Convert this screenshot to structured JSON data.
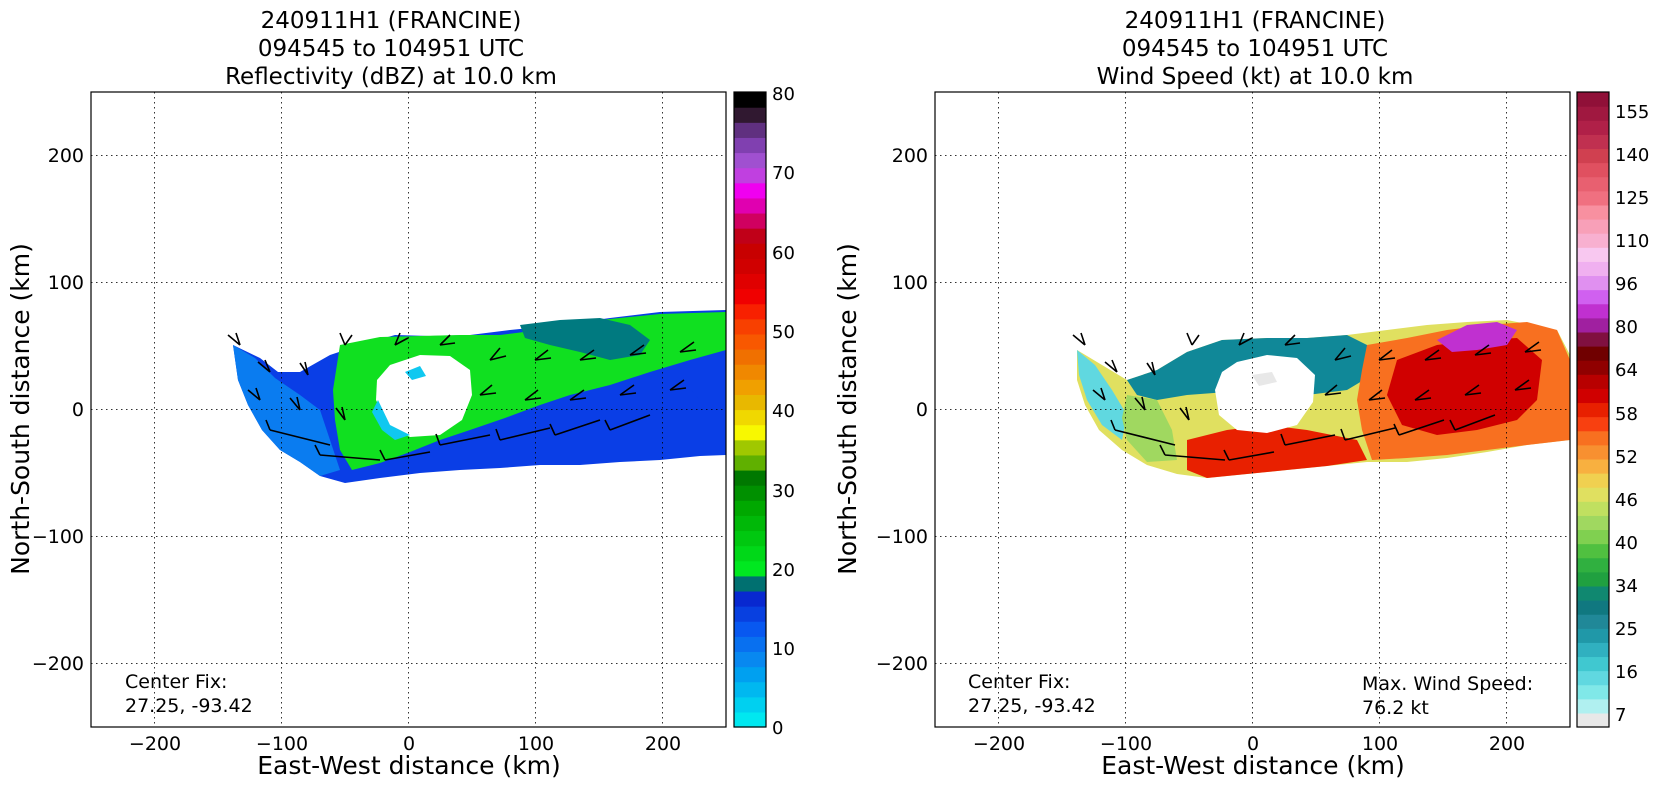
{
  "chart_data": [
    {
      "type": "heatmap",
      "title_lines": [
        "240911H1 (FRANCINE)",
        "094545 to 104951 UTC",
        "Reflectivity (dBZ) at 10.0 km"
      ],
      "xlabel": "East-West distance (km)",
      "ylabel": "North-South distance (km)",
      "xlim": [
        -250,
        250
      ],
      "ylim": [
        -250,
        250
      ],
      "x_ticks": [
        -200,
        -100,
        0,
        100,
        200
      ],
      "y_ticks": [
        -200,
        -100,
        0,
        100,
        200
      ],
      "x_tick_labels": [
        "−200",
        "−100",
        "0",
        "100",
        "200"
      ],
      "y_tick_labels": [
        "−200",
        "−100",
        "0",
        "100",
        "200"
      ],
      "grid": true,
      "colorbar": {
        "min": 0,
        "max": 80,
        "ticks": [
          0,
          10,
          20,
          30,
          40,
          50,
          60,
          70,
          80
        ],
        "tick_labels": [
          "0",
          "10",
          "20",
          "30",
          "40",
          "50",
          "60",
          "70",
          "80"
        ],
        "colors": [
          "#00e8f0",
          "#00d0f0",
          "#00b8f0",
          "#00a0f0",
          "#0888f0",
          "#0870f0",
          "#0858f0",
          "#0840e0",
          "#0828d0",
          "#007070",
          "#00e820",
          "#00d818",
          "#00c810",
          "#00b808",
          "#00a800",
          "#009000",
          "#007800",
          "#60b000",
          "#a0c800",
          "#f8f800",
          "#f0d800",
          "#e8b800",
          "#f0a000",
          "#f08800",
          "#f07000",
          "#f85800",
          "#f84000",
          "#f82000",
          "#f00000",
          "#e00000",
          "#d00000",
          "#c80000",
          "#c00018",
          "#d00060",
          "#e000b0",
          "#f000f0",
          "#c040e0",
          "#a050d0",
          "#8040b0",
          "#603080",
          "#301830",
          "#000000"
        ]
      },
      "annotations": [
        "Center Fix:",
        "27.25, -93.42"
      ]
    },
    {
      "type": "heatmap",
      "title_lines": [
        "240911H1 (FRANCINE)",
        "094545 to 104951 UTC",
        "Wind Speed (kt) at 10.0 km"
      ],
      "xlabel": "East-West distance (km)",
      "ylabel": "North-South distance (km)",
      "xlim": [
        -250,
        250
      ],
      "ylim": [
        -250,
        250
      ],
      "x_ticks": [
        -200,
        -100,
        0,
        100,
        200
      ],
      "y_ticks": [
        -200,
        -100,
        0,
        100,
        200
      ],
      "x_tick_labels": [
        "−200",
        "−100",
        "0",
        "100",
        "200"
      ],
      "y_tick_labels": [
        "−200",
        "−100",
        "0",
        "100",
        "200"
      ],
      "grid": true,
      "colorbar": {
        "tick_labels": [
          "7",
          "16",
          "25",
          "34",
          "40",
          "46",
          "52",
          "58",
          "64",
          "80",
          "96",
          "110",
          "125",
          "140",
          "155"
        ],
        "colors": [
          "#e8e8e8",
          "#b0f0f0",
          "#80e8e8",
          "#60d8e0",
          "#40c8d0",
          "#30b0c0",
          "#2098a8",
          "#208898",
          "#107880",
          "#108870",
          "#20a040",
          "#30b040",
          "#50c040",
          "#80d050",
          "#a0d860",
          "#c0e060",
          "#e0e060",
          "#f0d050",
          "#f8b040",
          "#f89030",
          "#f87020",
          "#f84010",
          "#e82000",
          "#d00000",
          "#b80000",
          "#900000",
          "#700000",
          "#801040",
          "#a020a0",
          "#c030d0",
          "#d060f0",
          "#e090f0",
          "#f0b0f0",
          "#f8c8f0",
          "#f8b0d0",
          "#f8a0b8",
          "#f890a0",
          "#f07080",
          "#e86070",
          "#e05060",
          "#d04050",
          "#c03050",
          "#b02048",
          "#a01840",
          "#901038"
        ]
      },
      "annotations": [
        "Center Fix:",
        "27.25, -93.42"
      ],
      "max_wind_lines": [
        "Max. Wind Speed:",
        "76.2 kt"
      ]
    }
  ]
}
